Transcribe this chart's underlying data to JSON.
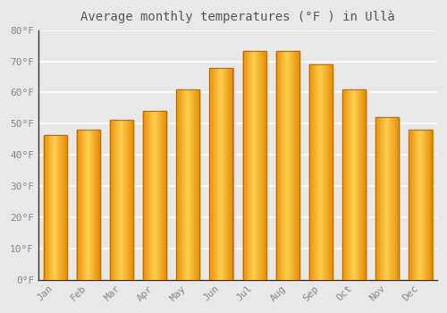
{
  "title": "Average monthly temperatures (°F ) in Ullà",
  "months": [
    "Jan",
    "Feb",
    "Mar",
    "Apr",
    "May",
    "Jun",
    "Jul",
    "Aug",
    "Sep",
    "Oct",
    "Nov",
    "Dec"
  ],
  "values": [
    46.4,
    48.2,
    51.1,
    54.0,
    61.0,
    68.0,
    73.4,
    73.4,
    69.1,
    61.0,
    52.0,
    48.0
  ],
  "background_color": "#e8e8e8",
  "ylim": [
    0,
    80
  ],
  "yticks": [
    0,
    10,
    20,
    30,
    40,
    50,
    60,
    70,
    80
  ],
  "ytick_labels": [
    "0°F",
    "10°F",
    "20°F",
    "30°F",
    "40°F",
    "50°F",
    "60°F",
    "70°F",
    "80°F"
  ],
  "title_fontsize": 10,
  "tick_fontsize": 8,
  "grid_color": "#ffffff",
  "bar_color_left": "#E8900A",
  "bar_color_center": "#FFD050",
  "bar_color_right": "#E8900A",
  "bar_edge_color": "#C07000",
  "tick_color": "#888888",
  "spine_color": "#333333",
  "title_color": "#555555"
}
